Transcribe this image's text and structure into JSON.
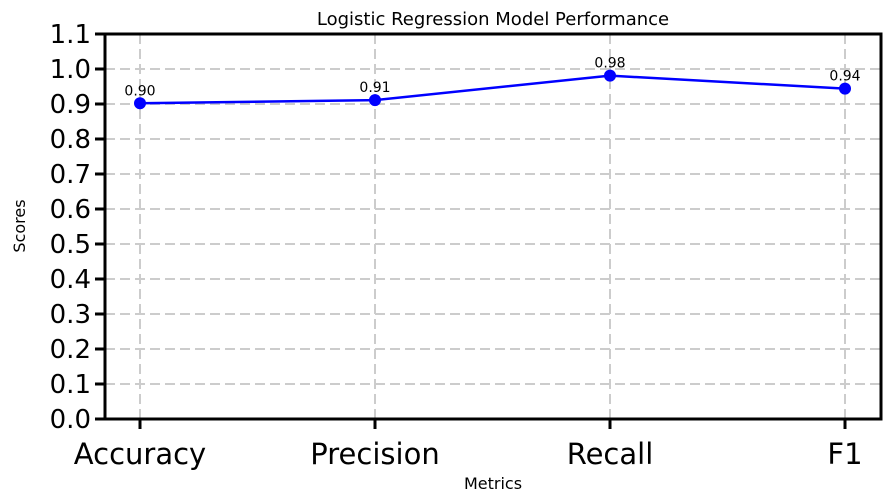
{
  "chart_data": {
    "type": "line",
    "title": "Logistic Regression Model Performance",
    "xlabel": "Metrics",
    "ylabel": "Scores",
    "categories": [
      "Accuracy",
      "Precision",
      "Recall",
      "F1"
    ],
    "values": [
      0.902,
      0.911,
      0.981,
      0.944
    ],
    "data_labels": [
      "0.90",
      "0.91",
      "0.98",
      "0.94"
    ],
    "ylim": [
      0.0,
      1.1
    ],
    "yticks": [
      "0.0",
      "0.1",
      "0.2",
      "0.3",
      "0.4",
      "0.5",
      "0.6",
      "0.7",
      "0.8",
      "0.9",
      "1.0",
      "1.1"
    ],
    "grid": true,
    "line_color": "#0000ff",
    "marker": "circle"
  }
}
